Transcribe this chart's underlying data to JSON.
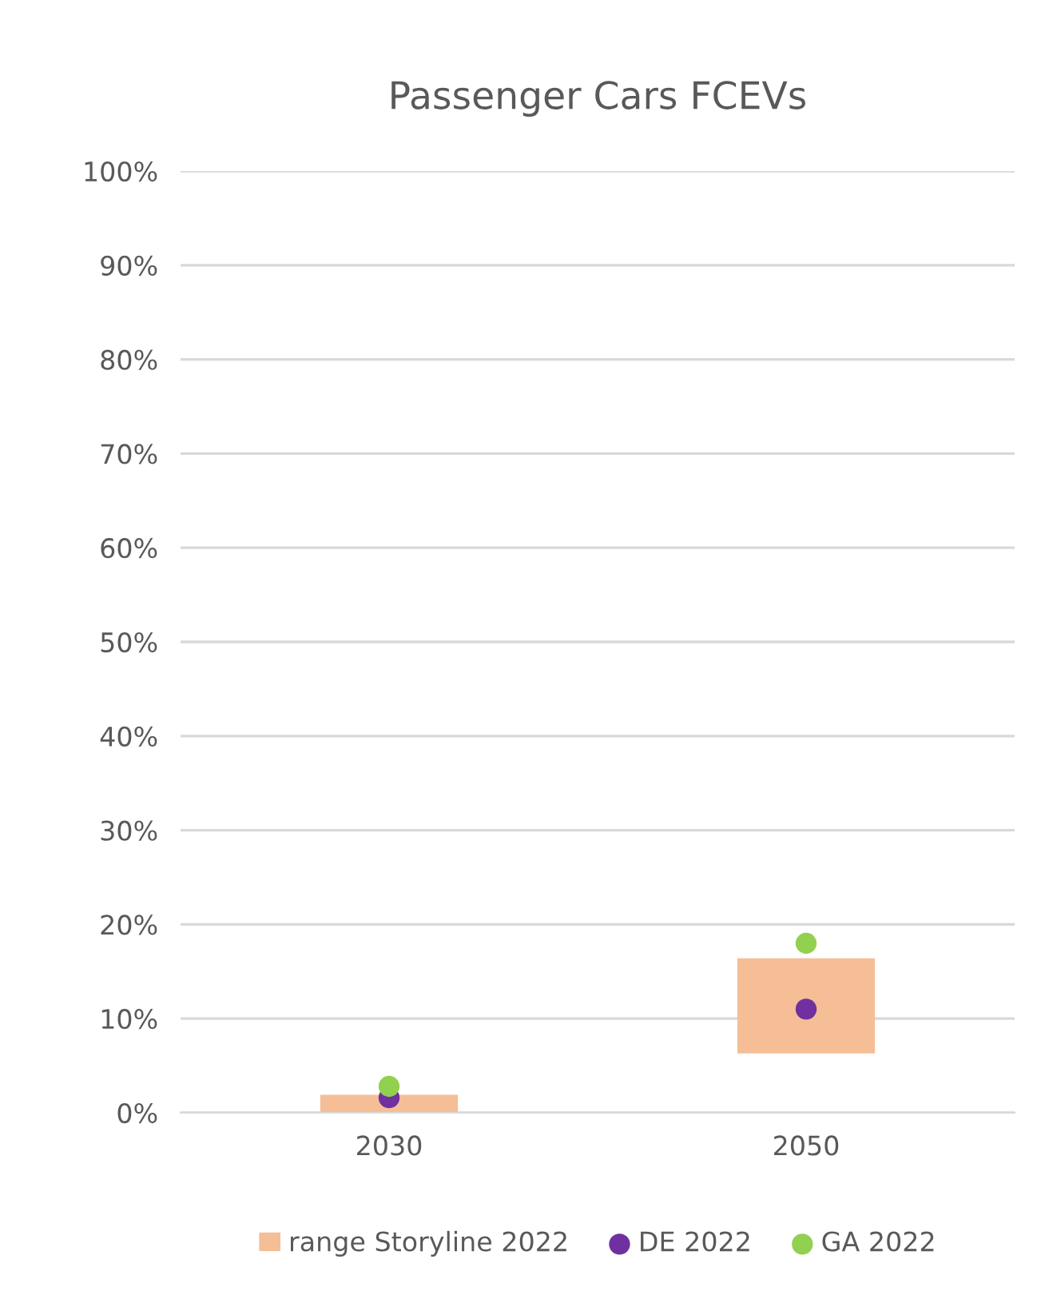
{
  "chart_data": {
    "type": "bar",
    "title": "Passenger Cars FCEVs",
    "categories": [
      "2030",
      "2050"
    ],
    "series": [
      {
        "name": "range Storyline 2022",
        "color": "#f5be96",
        "base": [
          0,
          6.3
        ],
        "values": [
          1.9,
          10.1
        ]
      },
      {
        "name": "DE 2022",
        "type": "scatter",
        "color": "#7030a0",
        "values": [
          1.6,
          11.0
        ]
      },
      {
        "name": "GA 2022",
        "type": "scatter",
        "color": "#92d050",
        "values": [
          2.8,
          18.0
        ]
      }
    ],
    "ylim": [
      0,
      100
    ],
    "yticks": [
      {
        "value": 0,
        "label": "0%"
      },
      {
        "value": 10,
        "label": "10%"
      },
      {
        "value": 20,
        "label": "20%"
      },
      {
        "value": 30,
        "label": "30%"
      },
      {
        "value": 40,
        "label": "40%"
      },
      {
        "value": 50,
        "label": "50%"
      },
      {
        "value": 60,
        "label": "60%"
      },
      {
        "value": 70,
        "label": "70%"
      },
      {
        "value": 80,
        "label": "80%"
      },
      {
        "value": 90,
        "label": "90%"
      },
      {
        "value": 100,
        "label": "100%"
      }
    ],
    "grid": "y",
    "legend": "bottom",
    "marker": "circle"
  }
}
